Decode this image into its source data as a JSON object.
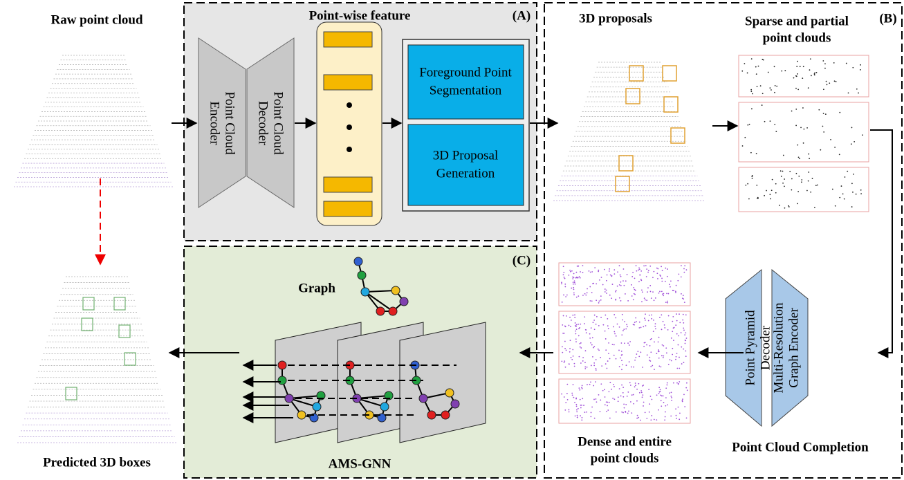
{
  "raw": "Raw point cloud",
  "predicted": "Predicted 3D boxes",
  "panel_a": {
    "label": "(A)",
    "title": "Point-wise feature",
    "encoder": [
      "Point Cloud",
      "Encoder"
    ],
    "decoder": [
      "Point Cloud",
      "Decoder"
    ],
    "segmentation": [
      "Foreground Point",
      "Segmentation"
    ],
    "proposal": [
      "3D Proposal",
      "Generation"
    ]
  },
  "panel_b": {
    "label": "(B)",
    "proposals": "3D proposals",
    "sparse": [
      "Sparse and partial",
      "point clouds"
    ],
    "dense": [
      "Dense and entire",
      "point clouds"
    ],
    "decoder": [
      "Point Pyramid",
      "Decoder"
    ],
    "encoder": [
      "Multi-Resolution",
      "Graph Encoder"
    ],
    "completion": "Point Cloud Completion"
  },
  "panel_c": {
    "label": "(C)",
    "graph": "Graph",
    "gnn": "AMS-GNN"
  }
}
